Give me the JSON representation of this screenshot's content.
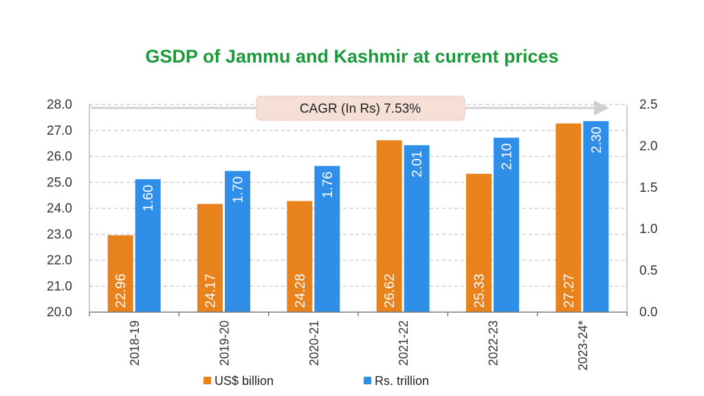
{
  "chart_data": {
    "type": "bar",
    "title": "GSDP of Jammu and Kashmir at current prices",
    "categories": [
      "2018-19",
      "2019-20",
      "2020-21",
      "2021-22",
      "2022-23",
      "2023-24*"
    ],
    "series": [
      {
        "name": "US$ billion",
        "axis": "left",
        "color": "#e8821c",
        "values": [
          22.96,
          24.17,
          24.28,
          26.62,
          25.33,
          27.27
        ],
        "labels": [
          "22.96",
          "24.17",
          "24.28",
          "26.62",
          "25.33",
          "27.27"
        ]
      },
      {
        "name": "Rs. trillion",
        "axis": "right",
        "color": "#2f8fe8",
        "values": [
          1.6,
          1.7,
          1.76,
          2.01,
          2.1,
          2.3
        ],
        "labels": [
          "1.60",
          "1.70",
          "1.76",
          "2.01",
          "2.10",
          "2.30"
        ]
      }
    ],
    "y_left": {
      "ylim": [
        20.0,
        28.0
      ],
      "ticks": [
        "20.0",
        "21.0",
        "22.0",
        "23.0",
        "24.0",
        "25.0",
        "26.0",
        "27.0",
        "28.0"
      ]
    },
    "y_right": {
      "ylim": [
        0.0,
        2.5
      ],
      "ticks": [
        "0.0",
        "0.5",
        "1.0",
        "1.5",
        "2.0",
        "2.5"
      ]
    },
    "annotation": "CAGR (In Rs) 7.53%",
    "grid": true,
    "legend_position": "bottom",
    "colors": {
      "title": "#1a9a3a",
      "axis_text": "#333333",
      "grid": "#cfcfcf",
      "arrow": "#cfcfcf",
      "annotation_bg": "#f6e0d6"
    }
  }
}
